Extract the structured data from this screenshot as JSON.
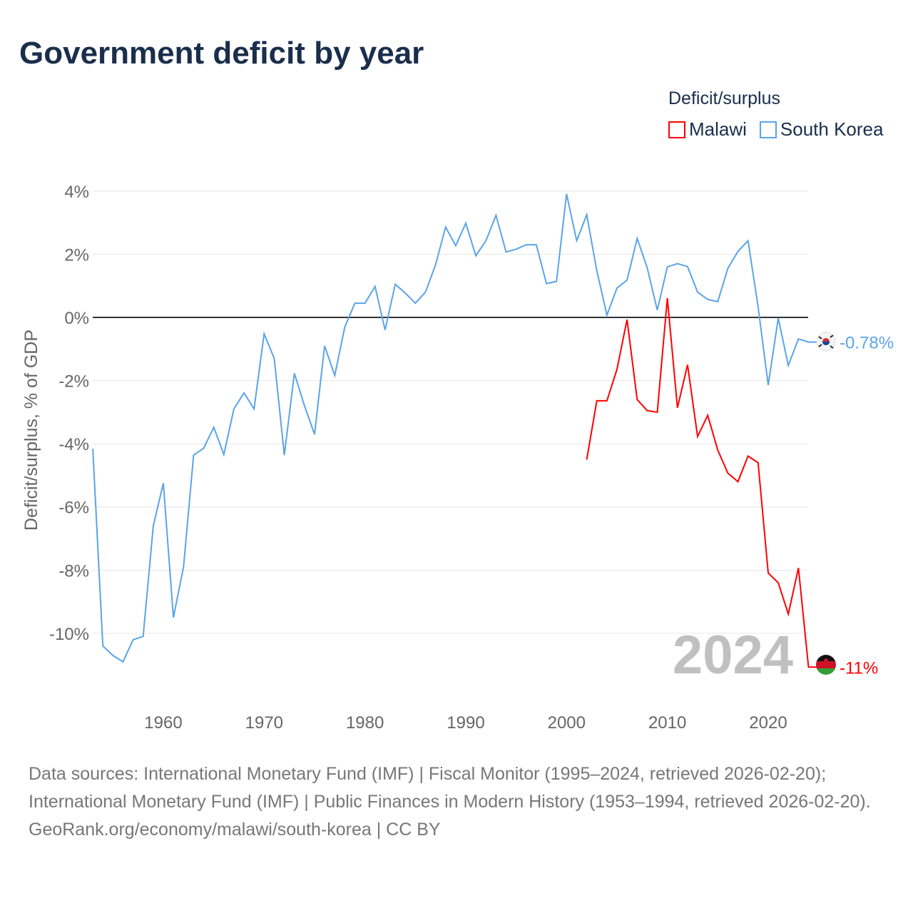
{
  "title": "Government deficit by year",
  "legend": {
    "title": "Deficit/surplus",
    "items": [
      {
        "name": "Malawi",
        "color": "#ff0000"
      },
      {
        "name": "South Korea",
        "color": "#5ba4e8"
      }
    ]
  },
  "footer": {
    "sources": "Data sources: International Monetary Fund (IMF) | Fiscal Monitor (1995–2024, retrieved 2026-02-20); International Monetary Fund (IMF) | Public Finances in Modern History (1953–1994, retrieved 2026-02-20).",
    "credit": "GeoRank.org/economy/malawi/south-korea | CC BY"
  },
  "chart_data": {
    "type": "line",
    "title": "Government deficit by year",
    "ylabel": "Deficit/surplus, % of GDP",
    "xlabel": "",
    "ylim": [
      -12,
      4
    ],
    "xlim": [
      1953,
      2024
    ],
    "yticks": [
      {
        "v": 4,
        "label": "4%"
      },
      {
        "v": 2,
        "label": "2%"
      },
      {
        "v": 0,
        "label": "0%"
      },
      {
        "v": -2,
        "label": "-2%"
      },
      {
        "v": -4,
        "label": "-4%"
      },
      {
        "v": -6,
        "label": "-6%"
      },
      {
        "v": -8,
        "label": "-8%"
      },
      {
        "v": -10,
        "label": "-10%"
      }
    ],
    "xticks": [
      {
        "v": 1960,
        "label": "1960"
      },
      {
        "v": 1970,
        "label": "1970"
      },
      {
        "v": 1980,
        "label": "1980"
      },
      {
        "v": 1990,
        "label": "1990"
      },
      {
        "v": 2000,
        "label": "2000"
      },
      {
        "v": 2010,
        "label": "2010"
      },
      {
        "v": 2020,
        "label": "2020"
      }
    ],
    "year_label": "2024",
    "series": [
      {
        "name": "South Korea",
        "color": "#5ba4e8",
        "end_label": "-0.78%",
        "start_year": 1953,
        "values": [
          -4.16,
          -10.4,
          -10.7,
          -10.9,
          -10.2,
          -10.1,
          -6.6,
          -5.25,
          -9.5,
          -7.9,
          -4.36,
          -4.14,
          -3.48,
          -4.34,
          -2.9,
          -2.39,
          -2.9,
          -0.52,
          -1.3,
          -4.36,
          -1.77,
          -2.8,
          -3.7,
          -0.9,
          -1.84,
          -0.3,
          0.45,
          0.45,
          0.98,
          -0.4,
          1.05,
          0.77,
          0.45,
          0.8,
          1.66,
          2.86,
          2.27,
          2.98,
          1.95,
          2.43,
          3.23,
          2.07,
          2.16,
          2.3,
          2.3,
          1.07,
          1.14,
          3.91,
          2.43,
          3.25,
          1.48,
          0.07,
          0.93,
          1.18,
          2.5,
          1.57,
          0.23,
          1.6,
          1.7,
          1.61,
          0.8,
          0.57,
          0.5,
          1.55,
          2.09,
          2.43,
          0.34,
          -2.14,
          -0.02,
          -1.52,
          -0.68,
          -0.78
        ]
      },
      {
        "name": "Malawi",
        "color": "#ff0000",
        "end_label": "-11%",
        "start_year": 2002,
        "values": [
          -4.5,
          -2.64,
          -2.64,
          -1.64,
          -0.07,
          -2.6,
          -2.95,
          -3.0,
          0.61,
          -2.86,
          -1.5,
          -3.77,
          -3.1,
          -4.2,
          -4.93,
          -5.2,
          -4.39,
          -4.6,
          -8.09,
          -8.4,
          -9.39,
          -7.93,
          -11.07
        ]
      }
    ]
  }
}
